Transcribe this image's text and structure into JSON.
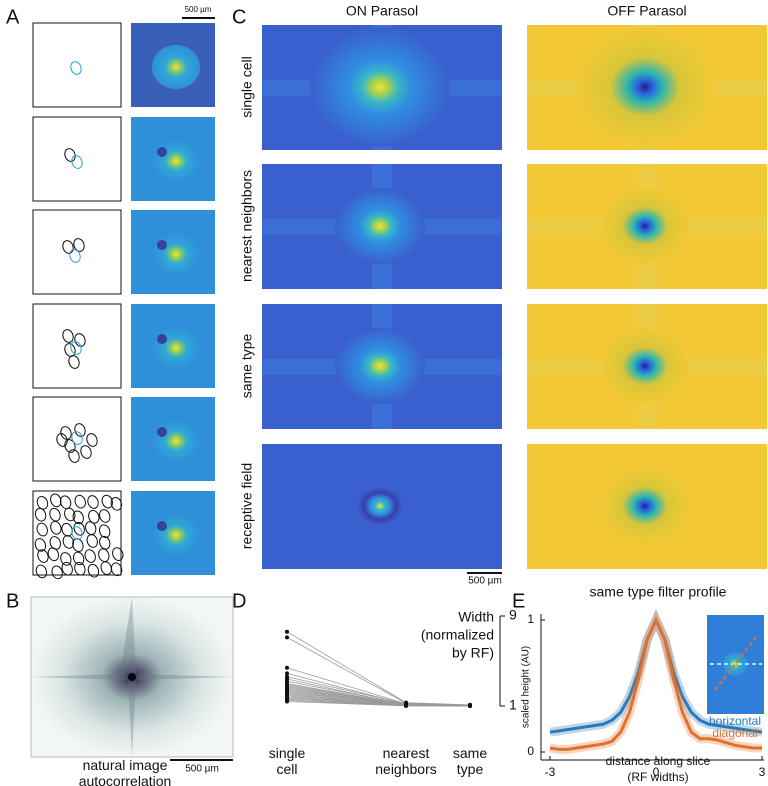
{
  "panels": {
    "A": {
      "label": "A",
      "scale_bar": "500 µm"
    },
    "B": {
      "label": "B",
      "caption": "natural image autocorrelation",
      "scale_bar": "500 µm"
    },
    "C": {
      "label": "C",
      "columns": [
        "ON Parasol",
        "OFF Parasol"
      ],
      "rows": [
        "single cell",
        "nearest neighbors",
        "same type",
        "receptive field"
      ],
      "scale_bar": "500 µm"
    },
    "D": {
      "label": "D"
    },
    "E": {
      "label": "E"
    }
  },
  "chart_data": [
    {
      "type": "slope",
      "categories": [
        "single cell",
        "nearest neighbors",
        "same type"
      ],
      "y_label": [
        "Width",
        "(normalized",
        "by RF)"
      ],
      "ylim": [
        1,
        9
      ],
      "yticks": [
        1,
        9
      ],
      "line_color": "#9a9a9a",
      "marker_color": "#111111",
      "series": [
        {
          "values": [
            7.6,
            1.3,
            1.1
          ]
        },
        {
          "values": [
            7.1,
            1.25,
            1.08
          ]
        },
        {
          "values": [
            4.4,
            1.2,
            1.1
          ]
        },
        {
          "values": [
            3.9,
            1.15,
            1.05
          ]
        },
        {
          "values": [
            3.6,
            1.2,
            1.07
          ]
        },
        {
          "values": [
            3.4,
            1.1,
            1.05
          ]
        },
        {
          "values": [
            3.2,
            1.15,
            1.06
          ]
        },
        {
          "values": [
            3.0,
            1.1,
            1.04
          ]
        },
        {
          "values": [
            2.9,
            1.12,
            1.05
          ]
        },
        {
          "values": [
            2.8,
            1.08,
            1.03
          ]
        },
        {
          "values": [
            2.7,
            1.1,
            1.05
          ]
        },
        {
          "values": [
            2.6,
            1.05,
            1.02
          ]
        },
        {
          "values": [
            2.5,
            1.1,
            1.04
          ]
        },
        {
          "values": [
            2.4,
            1.07,
            1.03
          ]
        },
        {
          "values": [
            2.3,
            1.05,
            1.02
          ]
        },
        {
          "values": [
            2.2,
            1.1,
            1.05
          ]
        },
        {
          "values": [
            2.1,
            1.04,
            1.02
          ]
        },
        {
          "values": [
            2.0,
            1.06,
            1.03
          ]
        },
        {
          "values": [
            1.9,
            1.03,
            1.01
          ]
        },
        {
          "values": [
            1.8,
            1.05,
            1.02
          ]
        },
        {
          "values": [
            1.7,
            1.02,
            1.01
          ]
        },
        {
          "values": [
            1.6,
            1.04,
            1.02
          ]
        },
        {
          "values": [
            1.5,
            1.02,
            1.0
          ]
        },
        {
          "values": [
            1.4,
            1.01,
            1.0
          ]
        }
      ]
    },
    {
      "type": "line",
      "title": "same type filter profile",
      "x_label": [
        "distance along slice",
        "(RF widths)"
      ],
      "y_label": "scaled height (AU)",
      "xlim": [
        -3,
        3
      ],
      "xticks": [
        -3,
        0,
        3
      ],
      "ylim": [
        0,
        1
      ],
      "yticks": [
        0,
        1
      ],
      "x": [
        -3,
        -2.75,
        -2.5,
        -2.25,
        -2,
        -1.75,
        -1.5,
        -1.25,
        -1,
        -0.75,
        -0.5,
        -0.25,
        0,
        0.25,
        0.5,
        0.75,
        1,
        1.25,
        1.5,
        1.75,
        2,
        2.25,
        2.5,
        2.75,
        3
      ],
      "series": [
        {
          "name": "horizontal",
          "color": "#2a7ab8",
          "values": [
            0.15,
            0.16,
            0.17,
            0.18,
            0.19,
            0.2,
            0.21,
            0.24,
            0.3,
            0.42,
            0.6,
            0.85,
            1,
            0.85,
            0.6,
            0.42,
            0.3,
            0.24,
            0.21,
            0.2,
            0.19,
            0.18,
            0.17,
            0.16,
            0.15
          ]
        },
        {
          "name": "diagonal",
          "color": "#e0712c",
          "values": [
            0.03,
            0.02,
            0.02,
            0.03,
            0.04,
            0.05,
            0.06,
            0.08,
            0.15,
            0.3,
            0.55,
            0.85,
            1,
            0.85,
            0.55,
            0.3,
            0.15,
            0.1,
            0.1,
            0.09,
            0.07,
            0.05,
            0.04,
            0.03,
            0.03
          ]
        }
      ]
    }
  ]
}
